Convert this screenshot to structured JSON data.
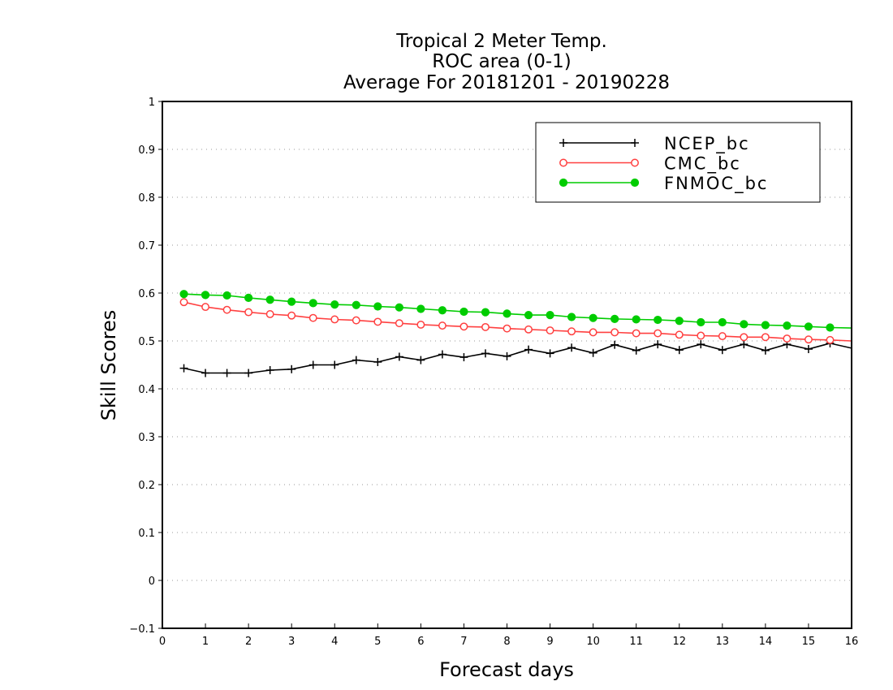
{
  "chart_data": {
    "type": "line",
    "title_lines": [
      "Tropical 2 Meter Temp.",
      "ROC area (0-1)",
      "Average For 20181201 - 20190228"
    ],
    "xlabel": "Forecast days",
    "ylabel": "Skill Scores",
    "xlim": [
      0,
      16
    ],
    "ylim": [
      -0.1,
      1
    ],
    "x_ticks": [
      "0",
      "1",
      "2",
      "3",
      "4",
      "5",
      "6",
      "7",
      "8",
      "9",
      "10",
      "11",
      "12",
      "13",
      "14",
      "15",
      "16"
    ],
    "y_ticks": [
      "−0.1",
      "0",
      "0.1",
      "0.2",
      "0.3",
      "0.4",
      "0.5",
      "0.6",
      "0.7",
      "0.8",
      "0.9",
      "1"
    ],
    "grid": true,
    "legend_position": "top-right",
    "x": [
      0.5,
      1,
      1.5,
      2,
      2.5,
      3,
      3.5,
      4,
      4.5,
      5,
      5.5,
      6,
      6.5,
      7,
      7.5,
      8,
      8.5,
      9,
      9.5,
      10,
      10.5,
      11,
      11.5,
      12,
      12.5,
      13,
      13.5,
      14,
      14.5,
      15,
      15.5,
      16
    ],
    "series": [
      {
        "name": "NCEP_bc",
        "color": "#000000",
        "marker": "plus",
        "values": [
          0.443,
          0.433,
          0.433,
          0.433,
          0.439,
          0.441,
          0.45,
          0.45,
          0.46,
          0.456,
          0.467,
          0.46,
          0.472,
          0.466,
          0.474,
          0.468,
          0.482,
          0.474,
          0.486,
          0.475,
          0.492,
          0.48,
          0.493,
          0.481,
          0.493,
          0.481,
          0.493,
          0.48,
          0.493,
          0.483,
          0.495,
          0.485
        ]
      },
      {
        "name": "CMC_bc",
        "color": "#ff4040",
        "marker": "open-circle",
        "values": [
          0.581,
          0.571,
          0.565,
          0.56,
          0.556,
          0.553,
          0.548,
          0.545,
          0.543,
          0.54,
          0.537,
          0.534,
          0.532,
          0.53,
          0.529,
          0.526,
          0.524,
          0.522,
          0.52,
          0.518,
          0.518,
          0.516,
          0.516,
          0.513,
          0.511,
          0.51,
          0.508,
          0.508,
          0.505,
          0.503,
          0.502,
          0.5
        ]
      },
      {
        "name": "FNMOC_bc",
        "color": "#00cc00",
        "marker": "filled-circle",
        "values": [
          0.598,
          0.596,
          0.595,
          0.59,
          0.586,
          0.582,
          0.579,
          0.576,
          0.575,
          0.572,
          0.57,
          0.567,
          0.564,
          0.561,
          0.56,
          0.557,
          0.554,
          0.554,
          0.55,
          0.548,
          0.546,
          0.545,
          0.544,
          0.542,
          0.539,
          0.539,
          0.535,
          0.533,
          0.532,
          0.53,
          0.528,
          0.527
        ]
      }
    ]
  }
}
